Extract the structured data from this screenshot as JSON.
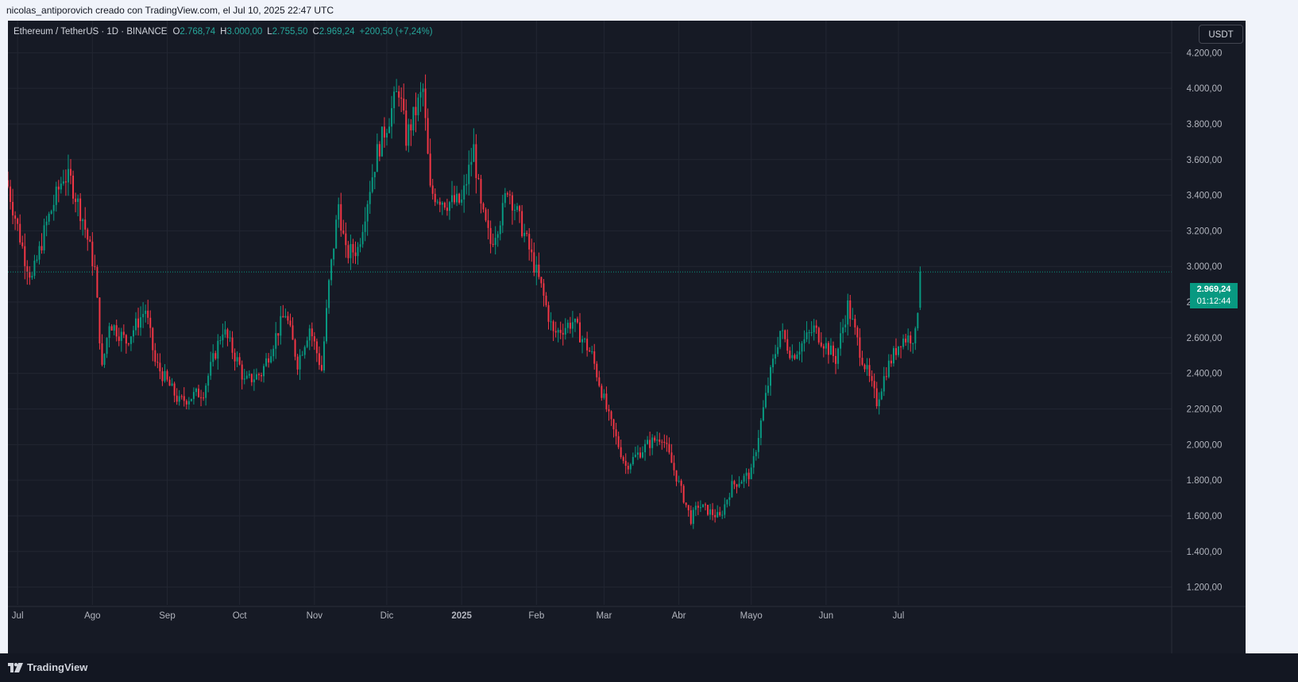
{
  "caption": "nicolas_antiporovich creado con TradingView.com, el Jul 10, 2025 22:47 UTC",
  "brand": "TradingView",
  "header": {
    "symbol": "Ethereum / TetherUS · 1D · BINANCE",
    "open_label": "O",
    "open": "2.768,74",
    "high_label": "H",
    "high": "3.000,00",
    "low_label": "L",
    "low": "2.755,50",
    "close_label": "C",
    "close": "2.969,24",
    "change": "+200,50 (+7,24%)"
  },
  "currency_button": "USDT",
  "last_price": {
    "value": "2.969,24",
    "countdown": "01:12:44"
  },
  "colors": {
    "up": "#089981",
    "down": "#f23645",
    "background": "#161a25",
    "grid": "#222632",
    "axis_text": "#b2b5be"
  },
  "chart_data": {
    "type": "candlestick",
    "symbol": "ETH/USDT",
    "interval": "1D",
    "x_range": [
      "2024-06-27",
      "2025-07-10"
    ],
    "ylim": [
      1100,
      4380
    ],
    "y_ticks": [
      1200,
      1400,
      1600,
      1800,
      2000,
      2200,
      2400,
      2600,
      2800,
      3000,
      3200,
      3400,
      3600,
      3800,
      4000,
      4200
    ],
    "y_tick_labels": [
      "1.200,00",
      "1.400,00",
      "1.600,00",
      "1.800,00",
      "2.000,00",
      "2.200,00",
      "2.400,00",
      "2.600,00",
      "2.800,00",
      "3.000,00",
      "3.200,00",
      "3.400,00",
      "3.600,00",
      "3.800,00",
      "4.000,00",
      "4.200,00"
    ],
    "x_ticks": [
      {
        "date": "2024-07-01",
        "label": "Jul"
      },
      {
        "date": "2024-08-01",
        "label": "Ago"
      },
      {
        "date": "2024-09-01",
        "label": "Sep"
      },
      {
        "date": "2024-10-01",
        "label": "Oct"
      },
      {
        "date": "2024-11-01",
        "label": "Nov"
      },
      {
        "date": "2024-12-01",
        "label": "Dic"
      },
      {
        "date": "2025-01-01",
        "label": "2025"
      },
      {
        "date": "2025-02-01",
        "label": "Feb"
      },
      {
        "date": "2025-03-01",
        "label": "Mar"
      },
      {
        "date": "2025-04-01",
        "label": "Abr"
      },
      {
        "date": "2025-05-01",
        "label": "Mayo"
      },
      {
        "date": "2025-06-01",
        "label": "Jun"
      },
      {
        "date": "2025-07-01",
        "label": "Jul"
      }
    ],
    "last_close": 2969.24,
    "daily_closes": [
      {
        "date": "2024-06-27",
        "close": 3450
      },
      {
        "date": "2024-07-04",
        "close": 3050
      },
      {
        "date": "2024-07-07",
        "close": 2930
      },
      {
        "date": "2024-07-13",
        "close": 3240
      },
      {
        "date": "2024-07-20",
        "close": 3510
      },
      {
        "date": "2024-07-23",
        "close": 3480
      },
      {
        "date": "2024-07-28",
        "close": 3270
      },
      {
        "date": "2024-08-02",
        "close": 2980
      },
      {
        "date": "2024-08-05",
        "close": 2420
      },
      {
        "date": "2024-08-08",
        "close": 2690
      },
      {
        "date": "2024-08-15",
        "close": 2580
      },
      {
        "date": "2024-08-23",
        "close": 2760
      },
      {
        "date": "2024-08-27",
        "close": 2460
      },
      {
        "date": "2024-09-06",
        "close": 2240
      },
      {
        "date": "2024-09-16",
        "close": 2300
      },
      {
        "date": "2024-09-24",
        "close": 2650
      },
      {
        "date": "2024-10-01",
        "close": 2440
      },
      {
        "date": "2024-10-03",
        "close": 2350
      },
      {
        "date": "2024-10-10",
        "close": 2400
      },
      {
        "date": "2024-10-16",
        "close": 2610
      },
      {
        "date": "2024-10-20",
        "close": 2740
      },
      {
        "date": "2024-10-25",
        "close": 2460
      },
      {
        "date": "2024-10-30",
        "close": 2660
      },
      {
        "date": "2024-11-04",
        "close": 2420
      },
      {
        "date": "2024-11-07",
        "close": 2900
      },
      {
        "date": "2024-11-11",
        "close": 3350
      },
      {
        "date": "2024-11-14",
        "close": 3070
      },
      {
        "date": "2024-11-19",
        "close": 3100
      },
      {
        "date": "2024-11-24",
        "close": 3450
      },
      {
        "date": "2024-11-27",
        "close": 3640
      },
      {
        "date": "2024-12-06",
        "close": 4000
      },
      {
        "date": "2024-12-09",
        "close": 3720
      },
      {
        "date": "2024-12-16",
        "close": 3990
      },
      {
        "date": "2024-12-19",
        "close": 3420
      },
      {
        "date": "2024-12-26",
        "close": 3360
      },
      {
        "date": "2025-01-01",
        "close": 3360
      },
      {
        "date": "2025-01-06",
        "close": 3660
      },
      {
        "date": "2025-01-09",
        "close": 3320
      },
      {
        "date": "2025-01-13",
        "close": 3130
      },
      {
        "date": "2025-01-18",
        "close": 3310
      },
      {
        "date": "2025-01-20",
        "close": 3450
      },
      {
        "date": "2025-01-27",
        "close": 3180
      },
      {
        "date": "2025-02-03",
        "close": 2880
      },
      {
        "date": "2025-02-08",
        "close": 2620
      },
      {
        "date": "2025-02-16",
        "close": 2690
      },
      {
        "date": "2025-02-24",
        "close": 2500
      },
      {
        "date": "2025-03-03",
        "close": 2150
      },
      {
        "date": "2025-03-10",
        "close": 1880
      },
      {
        "date": "2025-03-19",
        "close": 2000
      },
      {
        "date": "2025-03-25",
        "close": 2050
      },
      {
        "date": "2025-03-31",
        "close": 1820
      },
      {
        "date": "2025-04-06",
        "close": 1580
      },
      {
        "date": "2025-04-09",
        "close": 1660
      },
      {
        "date": "2025-04-18",
        "close": 1590
      },
      {
        "date": "2025-04-23",
        "close": 1770
      },
      {
        "date": "2025-05-01",
        "close": 1840
      },
      {
        "date": "2025-05-08",
        "close": 2340
      },
      {
        "date": "2025-05-13",
        "close": 2640
      },
      {
        "date": "2025-05-18",
        "close": 2500
      },
      {
        "date": "2025-05-27",
        "close": 2650
      },
      {
        "date": "2025-06-05",
        "close": 2480
      },
      {
        "date": "2025-06-10",
        "close": 2780
      },
      {
        "date": "2025-06-15",
        "close": 2530
      },
      {
        "date": "2025-06-22",
        "close": 2240
      },
      {
        "date": "2025-06-26",
        "close": 2420
      },
      {
        "date": "2025-07-02",
        "close": 2590
      },
      {
        "date": "2025-07-08",
        "close": 2610
      },
      {
        "date": "2025-07-09",
        "close": 2768.74
      },
      {
        "date": "2025-07-10",
        "close": 2969.24
      }
    ]
  }
}
